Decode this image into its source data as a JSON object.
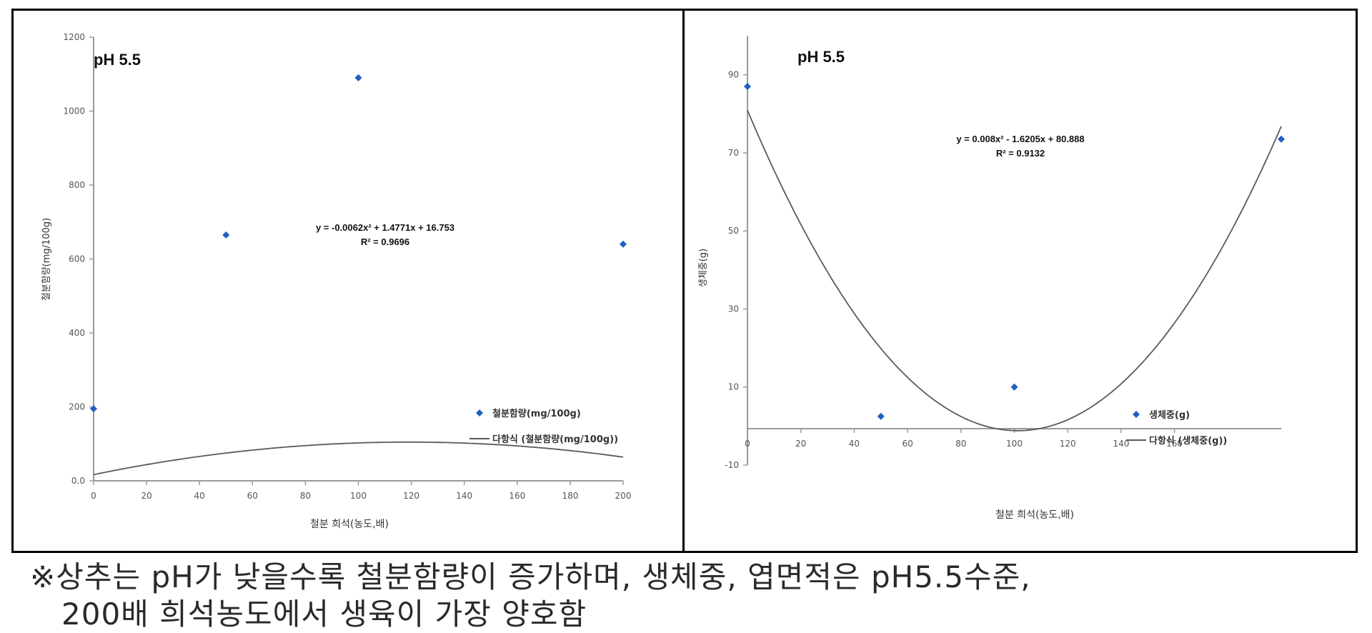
{
  "chart_data": [
    {
      "type": "scatter",
      "annotation": "pH 5.5",
      "xlabel": "철분 희석(농도,배)",
      "ylabel": "철분함량(mg/100g)",
      "xlim": [
        0,
        200
      ],
      "ylim": [
        0,
        1200
      ],
      "xticks": [
        "0",
        "20",
        "40",
        "60",
        "80",
        "100",
        "120",
        "140",
        "160",
        "180",
        "200"
      ],
      "yticks": [
        "0.0",
        "200",
        "400",
        "600",
        "800",
        "1000",
        "1200"
      ],
      "series": [
        {
          "name": "철분함량(mg/100g)",
          "x": [
            0,
            50,
            100,
            200
          ],
          "y": [
            195,
            665,
            1090,
            640
          ],
          "color": "#1f5fbf"
        }
      ],
      "trendline": {
        "name": "다항식 (철분함량(mg/100g))",
        "coef": [
          -0.0062,
          1.4771,
          16.753
        ],
        "equation": "y = -0.0062x² + 1.4771x + 16.753",
        "r2": "R² = 0.9696"
      },
      "legend_position": "bottom-right",
      "grid": false
    },
    {
      "type": "scatter",
      "annotation": "pH 5.5",
      "xlabel": "철분 희석(농도,배)",
      "ylabel": "생체중(g)",
      "xlim": [
        0,
        200
      ],
      "ylim": [
        -10,
        100
      ],
      "xticks": [
        "0",
        "20",
        "40",
        "60",
        "80",
        "100",
        "120",
        "140",
        "160"
      ],
      "yticks": [
        "-10",
        "10",
        "30",
        "50",
        "70",
        "90"
      ],
      "series": [
        {
          "name": "생체중(g)",
          "x": [
            0,
            50,
            100,
            200
          ],
          "y": [
            87,
            2.5,
            10,
            73.5
          ],
          "color": "#1f5fbf"
        }
      ],
      "trendline": {
        "name": "다항식 (생체중(g))",
        "coef": [
          0.008,
          -1.6205,
          80.888
        ],
        "equation": "y = 0.008x² - 1.6205x + 80.888",
        "r2": "R² = 0.9132"
      },
      "legend_position": "bottom-right",
      "grid": false
    }
  ],
  "note": {
    "line1": "※상추는 pH가 낮을수록 철분함량이 증가하며, 생체중, 엽면적은 pH5.5수준,",
    "line2": "200배 희석농도에서 생육이 가장 양호함"
  }
}
